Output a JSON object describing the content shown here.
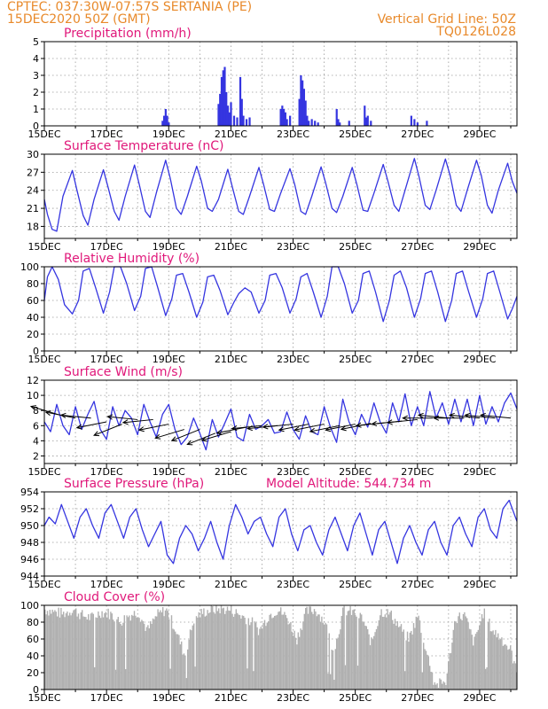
{
  "header": {
    "line1": "CPTEC:  037:30W-07:57S  SERTANIA (PE)",
    "line2": "15DEC2020 50Z (GMT)",
    "grid_note": "Vertical Grid Line: 50Z",
    "code": "TQ0126L028"
  },
  "x_labels": [
    "15DEC",
    "17DEC",
    "19DEC",
    "21DEC",
    "23DEC",
    "25DEC",
    "27DEC",
    "29DEC"
  ],
  "colors": {
    "line": "#3535e0",
    "cloud": "#b0b0b0",
    "title": "#e0187a",
    "header": "#e8892a"
  },
  "chart_data": [
    {
      "id": "precip",
      "type": "bar",
      "title": "Precipitation (mm/h)",
      "note": "",
      "ylim": [
        0,
        5
      ],
      "yticks": [
        0,
        1,
        2,
        3,
        4,
        5
      ],
      "x_range_days": [
        0,
        15.2
      ],
      "series": [
        {
          "x": [
            3.8,
            3.85,
            3.9,
            3.95,
            4.0,
            5.6,
            5.65,
            5.7,
            5.75,
            5.8,
            5.85,
            5.9,
            5.95,
            6.0,
            6.1,
            6.2,
            6.3,
            6.35,
            6.4,
            6.5,
            6.6,
            7.6,
            7.65,
            7.7,
            7.75,
            7.8,
            7.9,
            8.2,
            8.25,
            8.3,
            8.35,
            8.4,
            8.45,
            8.5,
            8.6,
            8.7,
            8.8,
            9.4,
            9.45,
            9.5,
            9.8,
            10.3,
            10.35,
            10.4,
            10.5,
            11.8,
            11.9,
            12.0,
            12.3
          ],
          "values": [
            0.3,
            0.6,
            1.0,
            0.6,
            0.2,
            1.3,
            1.9,
            2.9,
            3.3,
            3.5,
            2.0,
            1.2,
            0.8,
            1.4,
            0.6,
            0.5,
            2.9,
            1.6,
            0.6,
            0.4,
            0.5,
            1.0,
            1.2,
            1.0,
            0.8,
            0.4,
            0.6,
            1.6,
            3.0,
            2.7,
            2.2,
            1.5,
            0.6,
            0.3,
            0.4,
            0.3,
            0.2,
            1.0,
            0.4,
            0.2,
            0.3,
            1.2,
            0.5,
            0.6,
            0.3,
            0.6,
            0.4,
            0.2,
            0.3
          ]
        }
      ]
    },
    {
      "id": "temp",
      "type": "line",
      "title": "Surface Temperature (nC)",
      "note": "",
      "ylim": [
        16,
        30
      ],
      "yticks": [
        18,
        21,
        24,
        27,
        30
      ],
      "x_range_days": [
        0,
        15.2
      ],
      "series": [
        {
          "x": [
            0,
            0.1,
            0.25,
            0.4,
            0.6,
            0.9,
            1.05,
            1.25,
            1.4,
            1.6,
            1.9,
            2.05,
            2.25,
            2.4,
            2.6,
            2.9,
            3.05,
            3.25,
            3.4,
            3.6,
            3.9,
            4.05,
            4.25,
            4.4,
            4.6,
            4.9,
            5.05,
            5.25,
            5.4,
            5.6,
            5.9,
            6.05,
            6.25,
            6.4,
            6.6,
            6.9,
            7.05,
            7.25,
            7.4,
            7.6,
            7.9,
            8.05,
            8.25,
            8.4,
            8.6,
            8.9,
            9.05,
            9.25,
            9.4,
            9.6,
            9.9,
            10.05,
            10.25,
            10.4,
            10.6,
            10.9,
            11.05,
            11.25,
            11.4,
            11.6,
            11.9,
            12.05,
            12.25,
            12.4,
            12.6,
            12.9,
            13.05,
            13.25,
            13.4,
            13.6,
            13.9,
            14.05,
            14.25,
            14.4,
            14.6,
            14.9,
            15.05,
            15.2
          ],
          "values": [
            22.5,
            20,
            17.5,
            17.2,
            23,
            27.3,
            24,
            19.8,
            18.2,
            22.5,
            27.4,
            24.5,
            20.5,
            19,
            23,
            28.2,
            25,
            20.5,
            19.5,
            23.5,
            29,
            26,
            21,
            20,
            23,
            28,
            25.5,
            21,
            20.5,
            22.5,
            27.5,
            24.5,
            20.5,
            20,
            23,
            27.8,
            25,
            20.8,
            20.5,
            23.5,
            27.6,
            25,
            20.5,
            20,
            23,
            27.9,
            25.2,
            21,
            20.3,
            23,
            27.8,
            25,
            20.7,
            20.5,
            23.5,
            28.3,
            25.5,
            21.5,
            20.5,
            24,
            29.3,
            26.3,
            21.5,
            20.8,
            24,
            29.2,
            26.5,
            21.5,
            20.5,
            24,
            29,
            26.5,
            21.5,
            20.2,
            24,
            28.5,
            25.5,
            23.5
          ]
        }
      ]
    },
    {
      "id": "rh",
      "type": "line",
      "title": "Relative Humidity (%)",
      "note": "",
      "ylim": [
        0,
        100
      ],
      "yticks": [
        0,
        20,
        40,
        60,
        80,
        100
      ],
      "x_range_days": [
        0,
        15.2
      ],
      "series": [
        {
          "x": [
            0,
            0.1,
            0.25,
            0.45,
            0.65,
            0.9,
            1.1,
            1.25,
            1.45,
            1.65,
            1.9,
            2.1,
            2.25,
            2.45,
            2.65,
            2.9,
            3.1,
            3.25,
            3.45,
            3.65,
            3.9,
            4.1,
            4.25,
            4.45,
            4.65,
            4.9,
            5.1,
            5.25,
            5.45,
            5.65,
            5.9,
            6.1,
            6.25,
            6.45,
            6.65,
            6.9,
            7.1,
            7.25,
            7.45,
            7.65,
            7.9,
            8.1,
            8.25,
            8.45,
            8.65,
            8.9,
            9.1,
            9.25,
            9.45,
            9.65,
            9.9,
            10.1,
            10.25,
            10.45,
            10.65,
            10.9,
            11.1,
            11.25,
            11.45,
            11.65,
            11.9,
            12.1,
            12.25,
            12.45,
            12.65,
            12.9,
            13.1,
            13.25,
            13.45,
            13.65,
            13.9,
            14.1,
            14.25,
            14.45,
            14.65,
            14.9,
            15.05,
            15.2
          ],
          "values": [
            60,
            88,
            100,
            85,
            55,
            44,
            60,
            95,
            98,
            75,
            45,
            70,
            100,
            100,
            80,
            48,
            65,
            98,
            100,
            75,
            42,
            62,
            90,
            92,
            70,
            40,
            58,
            88,
            90,
            72,
            43,
            58,
            68,
            75,
            70,
            45,
            60,
            90,
            92,
            75,
            45,
            62,
            88,
            92,
            70,
            40,
            65,
            100,
            100,
            80,
            45,
            60,
            92,
            95,
            70,
            35,
            60,
            90,
            95,
            75,
            40,
            62,
            92,
            95,
            70,
            35,
            60,
            92,
            95,
            70,
            40,
            62,
            92,
            95,
            70,
            38,
            50,
            65
          ]
        }
      ]
    },
    {
      "id": "wind",
      "type": "line",
      "title": "Surface Wind (m/s)",
      "note": "",
      "ylim": [
        1,
        12
      ],
      "yticks": [
        2,
        4,
        6,
        8,
        10,
        12
      ],
      "x_range_days": [
        0,
        15.2
      ],
      "series": [
        {
          "x": [
            0,
            0.2,
            0.4,
            0.6,
            0.8,
            1.0,
            1.2,
            1.4,
            1.6,
            1.8,
            2.0,
            2.2,
            2.4,
            2.6,
            2.8,
            3.0,
            3.2,
            3.4,
            3.6,
            3.8,
            4.0,
            4.2,
            4.4,
            4.6,
            4.8,
            5.0,
            5.2,
            5.4,
            5.6,
            5.8,
            6.0,
            6.2,
            6.4,
            6.6,
            6.8,
            7.0,
            7.2,
            7.4,
            7.6,
            7.8,
            8.0,
            8.2,
            8.4,
            8.6,
            8.8,
            9.0,
            9.2,
            9.4,
            9.6,
            9.8,
            10.0,
            10.2,
            10.4,
            10.6,
            10.8,
            11.0,
            11.2,
            11.4,
            11.6,
            11.8,
            12.0,
            12.2,
            12.4,
            12.6,
            12.8,
            13.0,
            13.2,
            13.4,
            13.6,
            13.8,
            14.0,
            14.2,
            14.4,
            14.6,
            14.8,
            15.0,
            15.2
          ],
          "values": [
            6.5,
            5.2,
            8.8,
            6,
            4.8,
            8.5,
            5.5,
            7.5,
            9.2,
            5.5,
            4.2,
            8.5,
            6,
            8,
            7,
            4.8,
            8.8,
            6.5,
            4.5,
            7.5,
            8.8,
            5.5,
            3.5,
            4.5,
            7,
            5,
            2.8,
            6.8,
            4.5,
            6.3,
            8.2,
            4.5,
            4,
            7.5,
            5.5,
            6,
            6.8,
            5,
            5.2,
            7.8,
            5.5,
            4.2,
            7.3,
            5.2,
            4.8,
            8.5,
            5.8,
            3.8,
            9.5,
            6.5,
            4.8,
            7.5,
            5.8,
            9,
            6.5,
            5,
            9,
            6.5,
            10.2,
            6,
            8.5,
            6,
            10.5,
            7,
            9,
            6.2,
            9.5,
            6.5,
            9.5,
            6,
            10,
            6.2,
            8.5,
            6.5,
            9,
            10.3,
            8.2
          ]
        }
      ],
      "vectors": {
        "x": [
          0.5,
          1.0,
          1.5,
          2.0,
          2.5,
          3.0,
          3.5,
          4.0,
          4.5,
          5.0,
          5.5,
          6.0,
          6.5,
          7.0,
          7.5,
          8.0,
          8.5,
          9.0,
          9.5,
          10.0,
          10.5,
          11.0,
          11.5,
          12.0,
          12.5,
          13.0,
          13.5,
          14.0,
          14.5,
          15.0
        ],
        "speed": [
          7.4,
          7.0,
          7.0,
          6.5,
          6.2,
          6.8,
          6.8,
          6.2,
          5.5,
          5.5,
          5.0,
          5.2,
          5.8,
          6.0,
          6.0,
          6.2,
          6.2,
          6.2,
          6.0,
          6.2,
          6.3,
          6.4,
          6.6,
          6.8,
          7.0,
          7.0,
          7.0,
          7.0,
          7.0,
          7.0
        ],
        "dx": [
          -1,
          -1,
          -1,
          -1,
          -1,
          -1,
          -1,
          -1,
          -1,
          -1,
          -1,
          -1,
          -1,
          -1,
          -1,
          -1,
          -1,
          -1,
          -1,
          -1,
          -1,
          -1,
          -1,
          -1,
          -1,
          -1,
          -1,
          -1,
          -1,
          -1
        ],
        "dy": [
          0.3,
          0.2,
          0.1,
          -0.2,
          -0.4,
          0.1,
          -0.1,
          -0.2,
          -0.3,
          -0.4,
          -0.4,
          -0.3,
          -0.2,
          -0.1,
          -0.1,
          -0.1,
          -0.2,
          -0.2,
          -0.2,
          -0.2,
          -0.2,
          -0.1,
          -0.1,
          -0.1,
          0.0,
          0.1,
          0.0,
          0.1,
          0.1,
          0.1
        ]
      }
    },
    {
      "id": "press",
      "type": "line",
      "title": "Surface Pressure (hPa)",
      "note": "Model Altitude: 544.734 m",
      "ylim": [
        944,
        954
      ],
      "yticks": [
        944,
        946,
        948,
        950,
        952,
        954
      ],
      "x_range_days": [
        0,
        15.2
      ],
      "series": [
        {
          "x": [
            0,
            0.15,
            0.35,
            0.55,
            0.75,
            0.95,
            1.15,
            1.35,
            1.55,
            1.75,
            1.95,
            2.15,
            2.35,
            2.55,
            2.75,
            2.95,
            3.15,
            3.35,
            3.55,
            3.75,
            3.95,
            4.15,
            4.35,
            4.55,
            4.75,
            4.95,
            5.15,
            5.35,
            5.55,
            5.75,
            5.95,
            6.15,
            6.35,
            6.55,
            6.75,
            6.95,
            7.15,
            7.35,
            7.55,
            7.75,
            7.95,
            8.15,
            8.35,
            8.55,
            8.75,
            8.95,
            9.15,
            9.35,
            9.55,
            9.75,
            9.95,
            10.15,
            10.35,
            10.55,
            10.75,
            10.95,
            11.15,
            11.35,
            11.55,
            11.75,
            11.95,
            12.15,
            12.35,
            12.55,
            12.75,
            12.95,
            13.15,
            13.35,
            13.55,
            13.75,
            13.95,
            14.15,
            14.35,
            14.55,
            14.75,
            14.95,
            15.2
          ],
          "values": [
            950,
            951,
            950.2,
            952.5,
            950.5,
            948.5,
            951,
            952,
            950,
            948.5,
            951.5,
            952.5,
            950.5,
            948.5,
            951,
            952,
            949.5,
            947.5,
            949,
            950.5,
            946.5,
            945.5,
            948.5,
            950,
            949,
            947,
            948.5,
            950.5,
            948,
            946,
            950,
            952.5,
            951,
            949,
            950.5,
            951,
            949,
            947.5,
            951,
            952,
            949,
            947,
            949.5,
            950,
            948,
            946.5,
            949.5,
            951,
            949,
            947,
            950,
            951.5,
            949,
            946.5,
            949.5,
            950.5,
            948,
            945.5,
            948.5,
            950,
            948,
            946.5,
            949.5,
            950.5,
            948,
            946.5,
            950,
            951,
            949,
            947.5,
            951,
            952,
            949.5,
            948.5,
            952,
            953,
            950.5
          ]
        }
      ]
    },
    {
      "id": "cloud",
      "type": "area",
      "title": "Cloud Cover (%)",
      "note": "",
      "ylim": [
        0,
        100
      ],
      "yticks": [
        0,
        20,
        40,
        60,
        80,
        100
      ],
      "x_range_days": [
        0,
        15.2
      ],
      "series": [
        {
          "x": [
            0,
            0.3,
            0.6,
            0.9,
            1.2,
            1.5,
            1.8,
            2.1,
            2.4,
            2.7,
            3.0,
            3.3,
            3.6,
            3.9,
            4.2,
            4.5,
            4.8,
            5.1,
            5.4,
            5.7,
            6.0,
            6.3,
            6.6,
            6.9,
            7.2,
            7.5,
            7.8,
            8.1,
            8.4,
            8.7,
            9.0,
            9.3,
            9.6,
            9.9,
            10.2,
            10.5,
            10.8,
            11.1,
            11.4,
            11.7,
            12.0,
            12.3,
            12.6,
            12.9,
            13.2,
            13.5,
            13.8,
            14.1,
            14.4,
            14.7,
            15.0,
            15.2
          ],
          "values": [
            95,
            92,
            90,
            95,
            88,
            85,
            92,
            90,
            80,
            88,
            92,
            70,
            88,
            95,
            72,
            40,
            85,
            92,
            95,
            96,
            94,
            88,
            82,
            70,
            88,
            95,
            85,
            60,
            92,
            95,
            80,
            45,
            94,
            92,
            85,
            55,
            93,
            90,
            75,
            60,
            88,
            40,
            5,
            10,
            85,
            88,
            55,
            92,
            70,
            60,
            45,
            15
          ]
        }
      ]
    }
  ]
}
